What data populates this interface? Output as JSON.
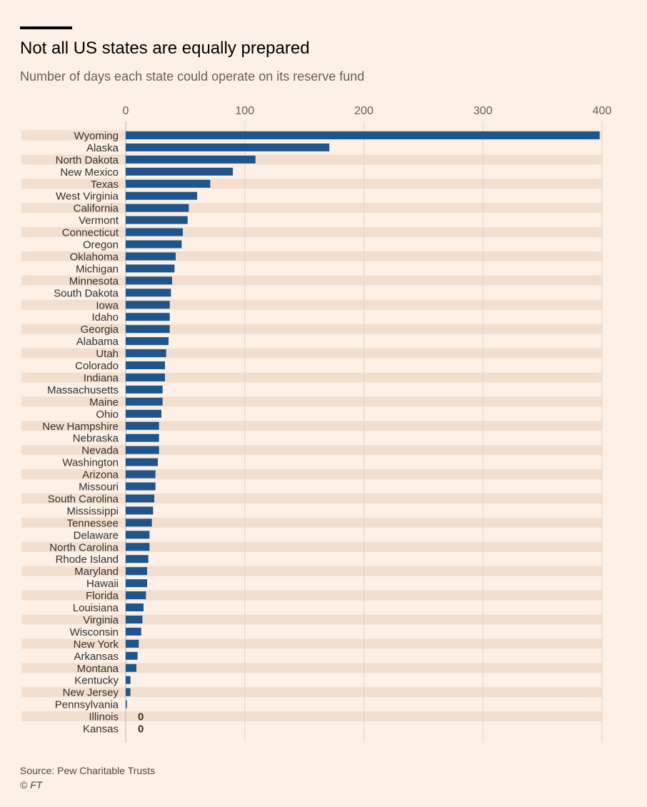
{
  "header": {
    "title": "Not all US states are equally prepared",
    "subtitle": "Number of days each state could operate on its reserve fund"
  },
  "footer": {
    "source": "Source: Pew Charitable Trusts",
    "copyright": "© FT"
  },
  "colors": {
    "bar": "#1e558c",
    "stripe": "#f2dfcf",
    "background": "#fdf0e6",
    "grid": "#e0d4c8",
    "text": "#33302e"
  },
  "chart_data": {
    "type": "bar",
    "orientation": "horizontal",
    "xlim": [
      0,
      400
    ],
    "x_ticks": [
      0,
      100,
      200,
      300,
      400
    ],
    "grid": true,
    "categories": [
      "Wyoming",
      "Alaska",
      "North Dakota",
      "New Mexico",
      "Texas",
      "West Virginia",
      "California",
      "Vermont",
      "Connecticut",
      "Oregon",
      "Oklahoma",
      "Michigan",
      "Minnesota",
      "South Dakota",
      "Iowa",
      "Idaho",
      "Georgia",
      "Alabama",
      "Utah",
      "Colorado",
      "Indiana",
      "Massachusetts",
      "Maine",
      "Ohio",
      "New Hampshire",
      "Nebraska",
      "Nevada",
      "Washington",
      "Arizona",
      "Missouri",
      "South Carolina",
      "Mississippi",
      "Tennessee",
      "Delaware",
      "North Carolina",
      "Rhode Island",
      "Maryland",
      "Hawaii",
      "Florida",
      "Louisiana",
      "Virginia",
      "Wisconsin",
      "New York",
      "Arkansas",
      "Montana",
      "Kentucky",
      "New Jersey",
      "Pennsylvania",
      "Illinois",
      "Kansas"
    ],
    "values": [
      398,
      171,
      109,
      90,
      71,
      60,
      53,
      52,
      48,
      47,
      42,
      41,
      39,
      38,
      37,
      37,
      37,
      36,
      34,
      33,
      33,
      31,
      31,
      30,
      28,
      28,
      28,
      27,
      25,
      25,
      24,
      23,
      22,
      20,
      20,
      19,
      18,
      18,
      17,
      15,
      14,
      13,
      11,
      10,
      9,
      4,
      4,
      1,
      0,
      0
    ],
    "value_labels": [
      {
        "category": "Illinois",
        "text": "0"
      },
      {
        "category": "Kansas",
        "text": "0"
      }
    ]
  }
}
